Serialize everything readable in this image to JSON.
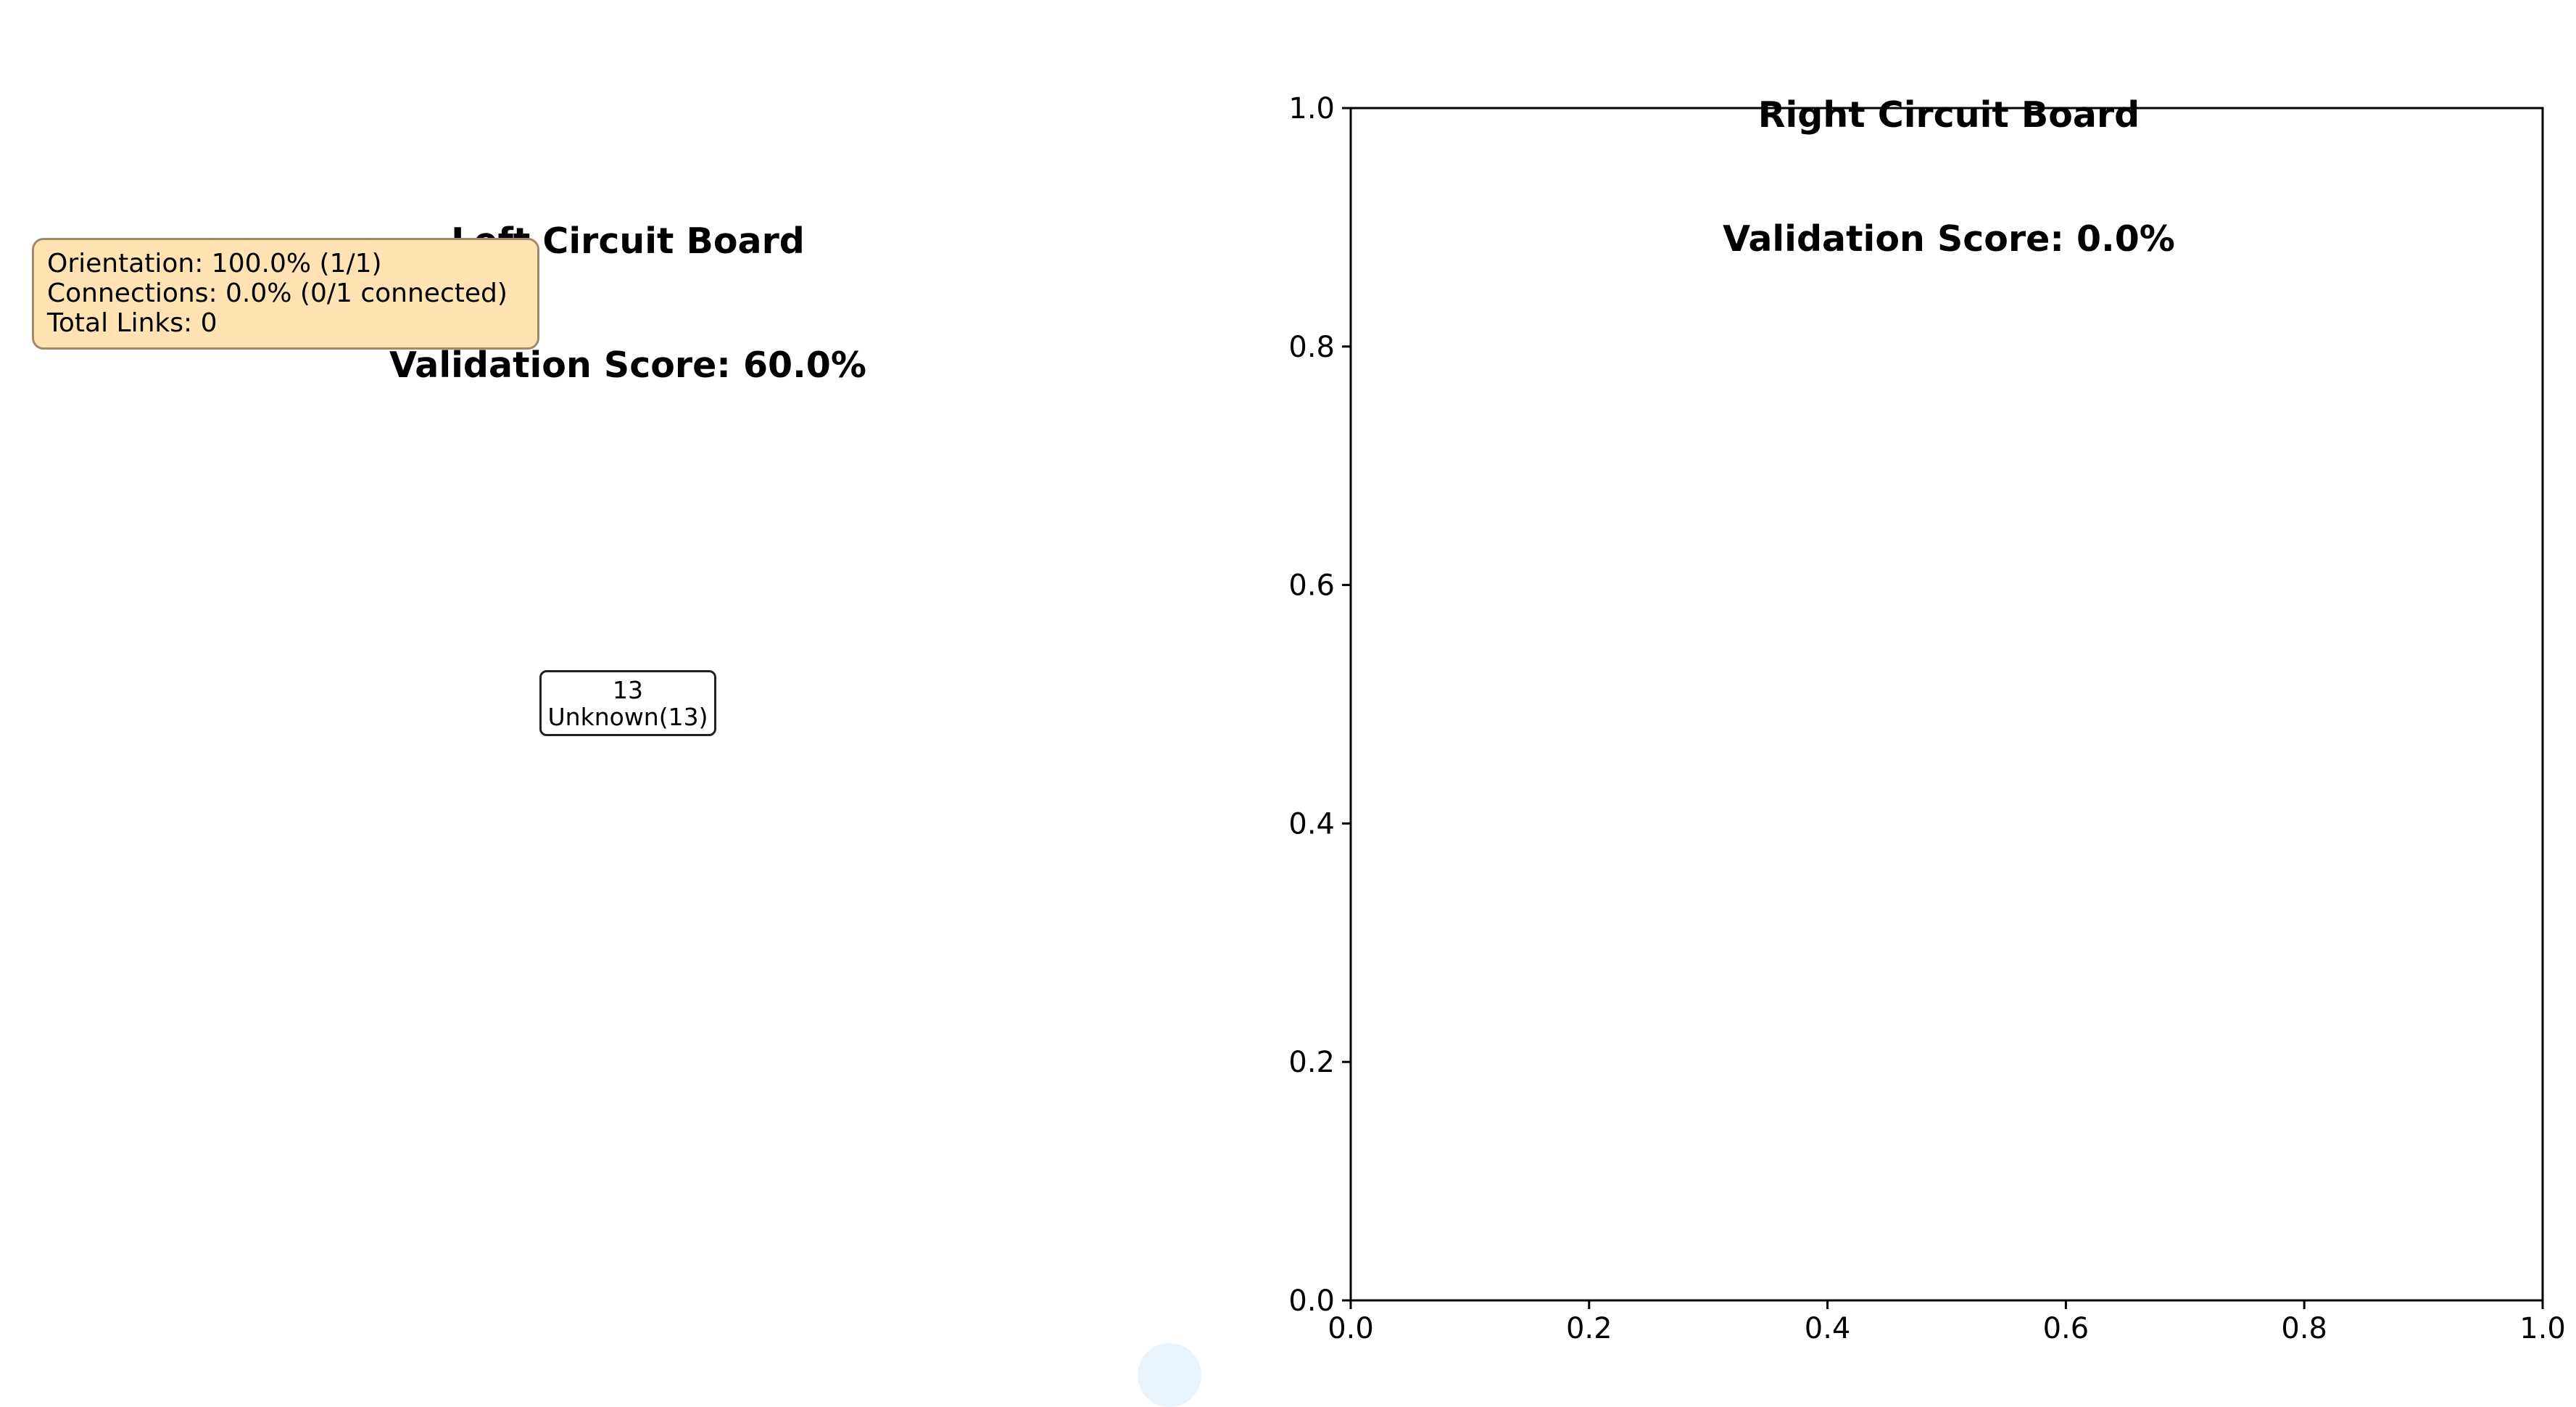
{
  "left_panel": {
    "title_line1": "Left Circuit Board",
    "title_line2": "Validation Score: 60.0%",
    "stats": {
      "orientation": "Orientation: 100.0% (1/1)",
      "connections": "Connections: 0.0% (0/1 connected)",
      "total_links": "Total Links: 0"
    },
    "node": {
      "id_text": "13",
      "type_text": "Unknown(13)"
    },
    "colors": {
      "stats_box_fill": "#ffe3b3",
      "node_fill": "#e6f2fb"
    }
  },
  "right_panel": {
    "title_line1": "Right Circuit Board",
    "title_line2": "Validation Score: 0.0%"
  },
  "chart_data": [
    {
      "type": "scatter",
      "title": "Left Circuit Board\nValidation Score: 60.0%",
      "axes_visible": false,
      "nodes": [
        {
          "label": "13",
          "sublabel": "Unknown(13)"
        }
      ],
      "edges": [],
      "annotation": [
        "Orientation: 100.0% (1/1)",
        "Connections: 0.0% (0/1 connected)",
        "Total Links: 0"
      ]
    },
    {
      "type": "scatter",
      "title": "Right Circuit Board\nValidation Score: 0.0%",
      "axes_visible": true,
      "xlim": [
        0.0,
        1.0
      ],
      "ylim": [
        0.0,
        1.0
      ],
      "x_ticks": [
        "0.0",
        "0.2",
        "0.4",
        "0.6",
        "0.8",
        "1.0"
      ],
      "y_ticks": [
        "0.0",
        "0.2",
        "0.4",
        "0.6",
        "0.8",
        "1.0"
      ],
      "series": [],
      "grid": false
    }
  ]
}
